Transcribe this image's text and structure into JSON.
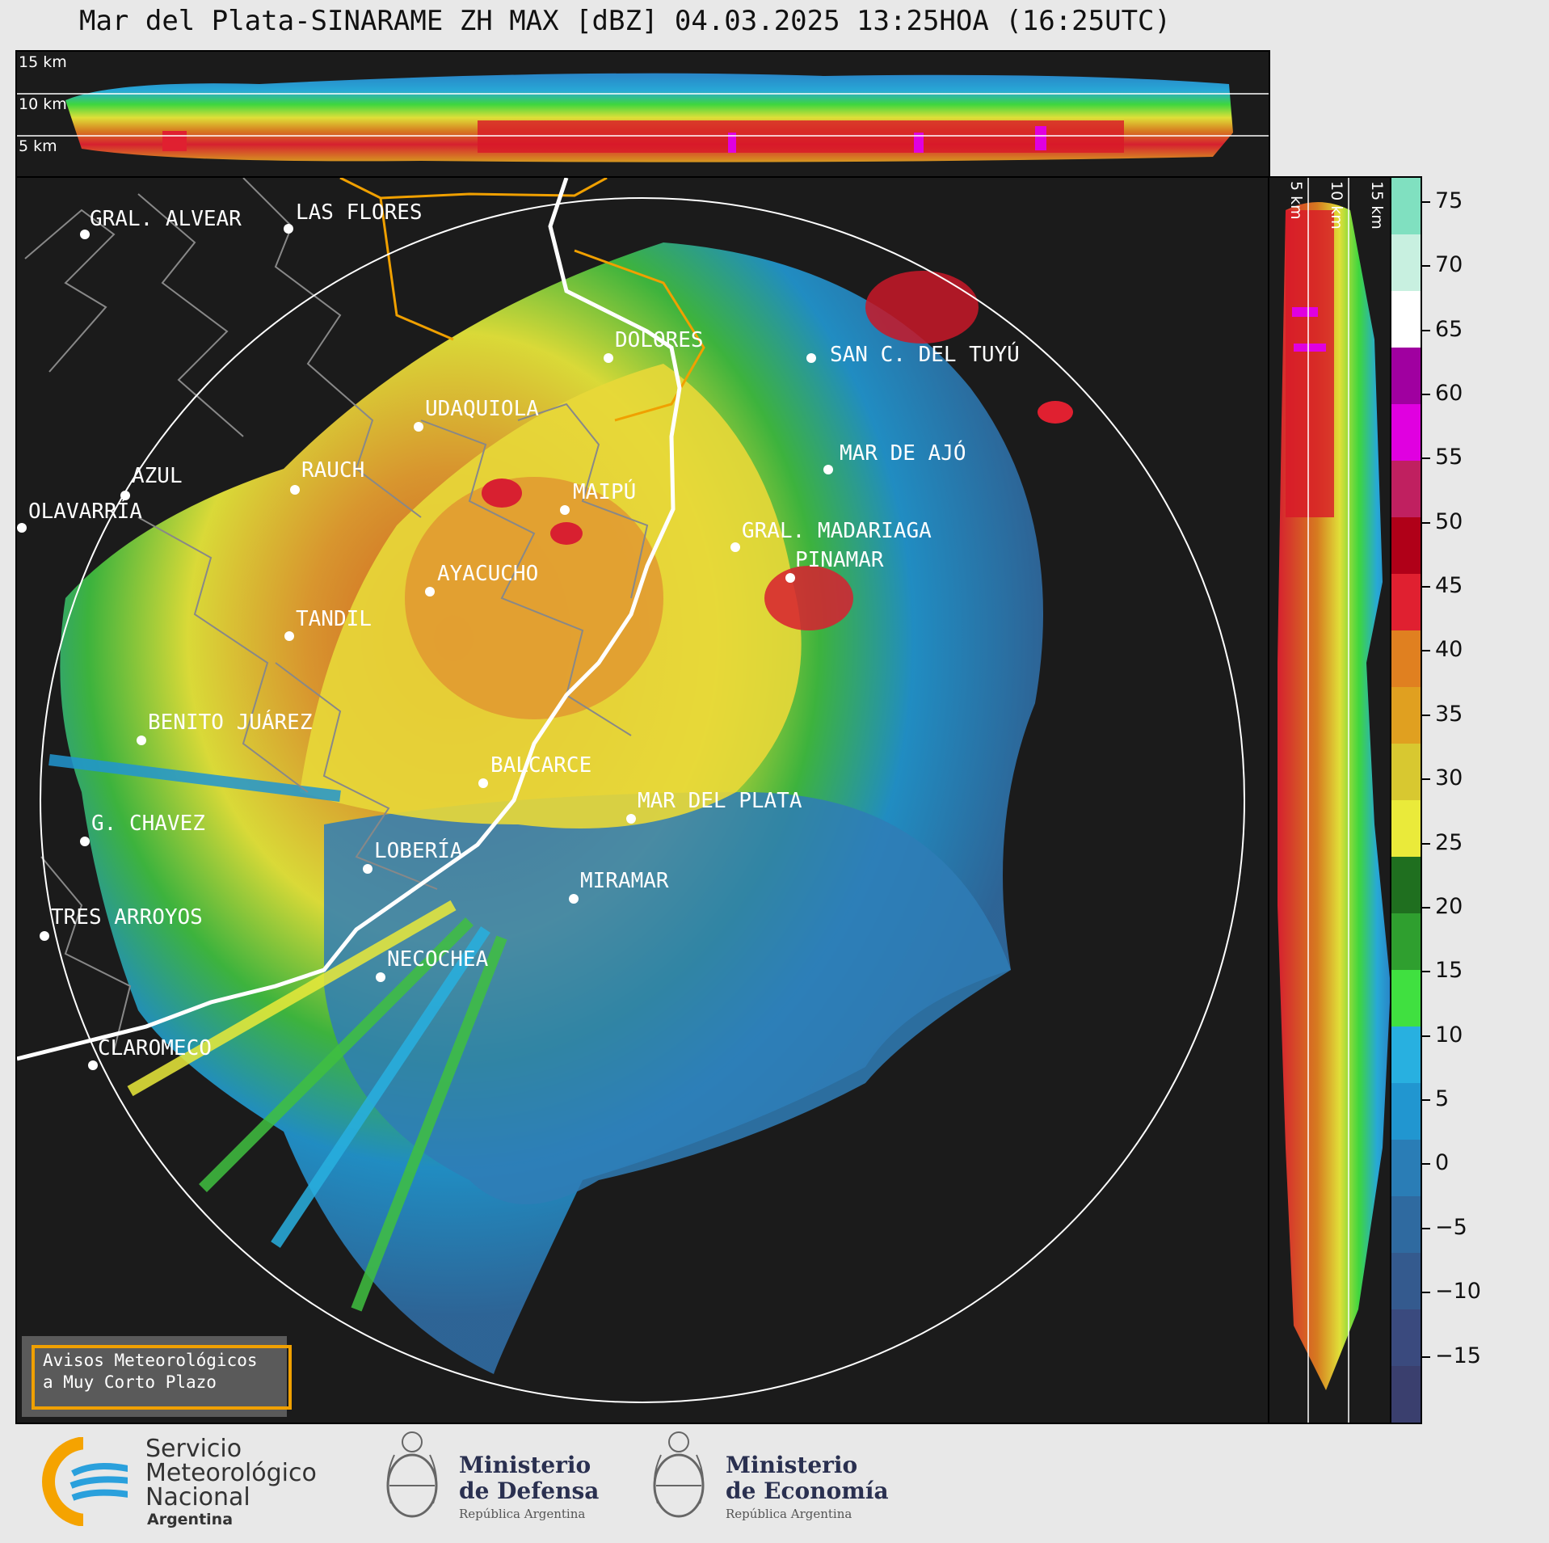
{
  "title": "Mar del Plata-SINARAME ZH MAX [dBZ] 04.03.2025 13:25HOA (16:25UTC)",
  "cross_section_top": {
    "labels": [
      "15 km",
      "10 km",
      "5 km"
    ]
  },
  "cross_section_right": {
    "labels": [
      "5 km",
      "10 km",
      "15 km"
    ]
  },
  "cities": [
    {
      "name": "GRAL. ALVEAR"
    },
    {
      "name": "LAS FLORES"
    },
    {
      "name": "DOLORES"
    },
    {
      "name": "SAN C. DEL TUYÚ"
    },
    {
      "name": "UDAQUIOLA"
    },
    {
      "name": "MAR DE AJÓ"
    },
    {
      "name": "AZUL"
    },
    {
      "name": "RAUCH"
    },
    {
      "name": "MAIPÚ"
    },
    {
      "name": "OLAVARRÍA"
    },
    {
      "name": "GRAL. MADARIAGA"
    },
    {
      "name": "PINAMAR"
    },
    {
      "name": "AYACUCHO"
    },
    {
      "name": "TANDIL"
    },
    {
      "name": "BENITO JUÁREZ"
    },
    {
      "name": "BALCARCE"
    },
    {
      "name": "MAR DEL PLATA"
    },
    {
      "name": "G. CHAVEZ"
    },
    {
      "name": "LOBERÍA"
    },
    {
      "name": "MIRAMAR"
    },
    {
      "name": "TRES ARROYOS"
    },
    {
      "name": "NECOCHEA"
    },
    {
      "name": "CLAROMECO"
    }
  ],
  "colorbar": {
    "unit": "dBZ",
    "range": [
      -20,
      77
    ],
    "ticks": [
      "75",
      "70",
      "65",
      "60",
      "55",
      "50",
      "45",
      "40",
      "35",
      "30",
      "25",
      "20",
      "15",
      "10",
      "5",
      "0",
      "−5",
      "−10",
      "−15"
    ],
    "colors": [
      "#3a3f6e",
      "#3a4a7e",
      "#345a8e",
      "#2f6aa0",
      "#2a7db6",
      "#2196d0",
      "#28b0e0",
      "#40e040",
      "#2f9f2f",
      "#1f6f1f",
      "#eaea3a",
      "#d8c830",
      "#e0a020",
      "#e08020",
      "#e02030",
      "#b00018",
      "#c02060",
      "#e000e0",
      "#a000a0",
      "#ffffff",
      "#c8f0e0",
      "#80e0c0"
    ]
  },
  "avisos": {
    "line1": "Avisos Meteorológicos",
    "line2": "a Muy Corto Plazo"
  },
  "logos": {
    "smn": {
      "line1": "Servicio",
      "line2": "Meteorológico",
      "line3": "Nacional",
      "line4": "Argentina"
    },
    "defensa": {
      "line1": "Ministerio",
      "line2": "de Defensa",
      "line3": "República Argentina"
    },
    "economia": {
      "line1": "Ministerio",
      "line2": "de Economía",
      "line3": "República Argentina"
    }
  }
}
